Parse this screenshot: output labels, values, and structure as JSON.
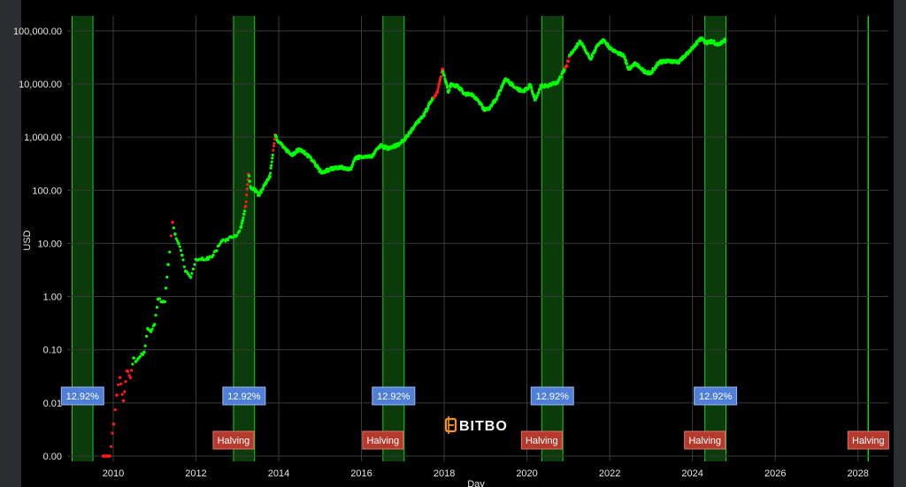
{
  "chart_data": {
    "type": "scatter",
    "xlabel": "Day",
    "ylabel": "USD",
    "yscale": "log",
    "xlim": [
      "2008-11-21",
      "2028-09-25"
    ],
    "ylim_log10": [
      -3.1,
      5.28
    ],
    "x_ticks": [
      "2010",
      "2012",
      "2014",
      "2016",
      "2018",
      "2020",
      "2022",
      "2024",
      "2026",
      "2028"
    ],
    "y_ticks": [
      {
        "value": 0.001,
        "label": "0.00"
      },
      {
        "value": 0.01,
        "label": "0.01"
      },
      {
        "value": 0.1,
        "label": "0.10"
      },
      {
        "value": 1,
        "label": "1.00"
      },
      {
        "value": 10,
        "label": "10.00"
      },
      {
        "value": 100,
        "label": "100.00"
      },
      {
        "value": 1000,
        "label": "1,000.00"
      },
      {
        "value": 10000,
        "label": "10,000.00"
      },
      {
        "value": 100000,
        "label": "100,000.00"
      }
    ],
    "grid": true,
    "colors": {
      "up": "#00ff00",
      "down": "#ff1a1a",
      "band_fill": "#0b3a0b",
      "band_line": "#1fd21f",
      "grid": "#3a3a3a"
    },
    "bands": [
      {
        "start": "2009-01-03",
        "end": "2009-07-06",
        "label": "12.92%"
      },
      {
        "start": "2012-11-28",
        "end": "2013-06-02",
        "label": "12.92%"
      },
      {
        "start": "2016-07-09",
        "end": "2017-01-12",
        "label": "12.92%"
      },
      {
        "start": "2020-05-11",
        "end": "2020-11-13",
        "label": "12.92%"
      },
      {
        "start": "2024-04-20",
        "end": "2024-10-23",
        "label": "12.92%"
      }
    ],
    "halvings": [
      {
        "date": "2012-11-28",
        "label": "Halving"
      },
      {
        "date": "2016-07-09",
        "label": "Halving"
      },
      {
        "date": "2020-05-11",
        "label": "Halving"
      },
      {
        "date": "2024-04-20",
        "label": "Halving"
      },
      {
        "date": "2028-04-01",
        "label": "Halving"
      }
    ],
    "series": [
      {
        "color_rule": "green when price rose in the following period, red when it fell",
        "points": [
          [
            "2009-10-05",
            0.001
          ],
          [
            "2009-10-20",
            0.001
          ],
          [
            "2009-11-10",
            0.001
          ],
          [
            "2009-12-01",
            0.001
          ],
          [
            "2010-01-05",
            0.004
          ],
          [
            "2010-02-01",
            0.014
          ],
          [
            "2010-03-01",
            0.03
          ],
          [
            "2010-04-01",
            0.011
          ],
          [
            "2010-05-01",
            0.04
          ],
          [
            "2010-06-01",
            0.03
          ],
          [
            "2010-07-01",
            0.07
          ],
          [
            "2010-07-20",
            0.06
          ],
          [
            "2010-08-15",
            0.07
          ],
          [
            "2010-10-01",
            0.09
          ],
          [
            "2010-11-01",
            0.25
          ],
          [
            "2010-12-01",
            0.22
          ],
          [
            "2011-01-01",
            0.3
          ],
          [
            "2011-02-01",
            0.9
          ],
          [
            "2011-03-01",
            0.8
          ],
          [
            "2011-04-01",
            0.8
          ],
          [
            "2011-05-01",
            4
          ],
          [
            "2011-06-08",
            25
          ],
          [
            "2011-07-01",
            15
          ],
          [
            "2011-08-01",
            10
          ],
          [
            "2011-09-01",
            6
          ],
          [
            "2011-10-01",
            3
          ],
          [
            "2011-11-15",
            2.3
          ],
          [
            "2012-01-01",
            5
          ],
          [
            "2012-02-15",
            5
          ],
          [
            "2012-04-01",
            5
          ],
          [
            "2012-06-01",
            6
          ],
          [
            "2012-08-15",
            11
          ],
          [
            "2012-10-01",
            12
          ],
          [
            "2012-12-15",
            13.5
          ],
          [
            "2013-02-01",
            20
          ],
          [
            "2013-03-15",
            50
          ],
          [
            "2013-04-09",
            200
          ],
          [
            "2013-05-01",
            110
          ],
          [
            "2013-06-15",
            100
          ],
          [
            "2013-07-10",
            80
          ],
          [
            "2013-09-01",
            130
          ],
          [
            "2013-10-15",
            180
          ],
          [
            "2013-11-30",
            1100
          ],
          [
            "2014-01-01",
            800
          ],
          [
            "2014-03-01",
            600
          ],
          [
            "2014-05-01",
            450
          ],
          [
            "2014-07-01",
            600
          ],
          [
            "2014-09-01",
            480
          ],
          [
            "2014-11-01",
            350
          ],
          [
            "2015-01-15",
            210
          ],
          [
            "2015-04-01",
            250
          ],
          [
            "2015-07-01",
            270
          ],
          [
            "2015-10-01",
            250
          ],
          [
            "2015-11-05",
            400
          ],
          [
            "2016-01-01",
            430
          ],
          [
            "2016-04-01",
            420
          ],
          [
            "2016-06-15",
            700
          ],
          [
            "2016-09-01",
            600
          ],
          [
            "2016-12-01",
            750
          ],
          [
            "2017-01-15",
            900
          ],
          [
            "2017-03-01",
            1200
          ],
          [
            "2017-05-01",
            1800
          ],
          [
            "2017-07-01",
            2500
          ],
          [
            "2017-09-01",
            4500
          ],
          [
            "2017-11-01",
            7000
          ],
          [
            "2017-12-17",
            19000
          ],
          [
            "2018-01-15",
            11000
          ],
          [
            "2018-02-06",
            7000
          ],
          [
            "2018-03-01",
            10000
          ],
          [
            "2018-05-01",
            9000
          ],
          [
            "2018-07-01",
            6500
          ],
          [
            "2018-09-01",
            6500
          ],
          [
            "2018-11-20",
            4200
          ],
          [
            "2018-12-15",
            3300
          ],
          [
            "2019-02-01",
            3500
          ],
          [
            "2019-04-01",
            5000
          ],
          [
            "2019-06-26",
            12500
          ],
          [
            "2019-08-01",
            10500
          ],
          [
            "2019-10-01",
            8300
          ],
          [
            "2019-12-01",
            7200
          ],
          [
            "2020-02-01",
            9500
          ],
          [
            "2020-03-13",
            5000
          ],
          [
            "2020-05-01",
            9000
          ],
          [
            "2020-07-15",
            9300
          ],
          [
            "2020-10-01",
            11000
          ],
          [
            "2020-12-15",
            22000
          ],
          [
            "2021-01-15",
            35000
          ],
          [
            "2021-04-14",
            63000
          ],
          [
            "2021-06-15",
            38000
          ],
          [
            "2021-07-20",
            30000
          ],
          [
            "2021-09-01",
            48000
          ],
          [
            "2021-11-10",
            67000
          ],
          [
            "2022-01-01",
            47000
          ],
          [
            "2022-03-01",
            40000
          ],
          [
            "2022-05-01",
            35000
          ],
          [
            "2022-06-18",
            19000
          ],
          [
            "2022-08-15",
            24000
          ],
          [
            "2022-11-20",
            16000
          ],
          [
            "2023-01-01",
            16500
          ],
          [
            "2023-03-15",
            26000
          ],
          [
            "2023-06-01",
            27000
          ],
          [
            "2023-09-01",
            26000
          ],
          [
            "2023-12-01",
            40000
          ],
          [
            "2024-03-14",
            72000
          ],
          [
            "2024-05-01",
            60000
          ],
          [
            "2024-07-01",
            63000
          ],
          [
            "2024-08-05",
            54000
          ],
          [
            "2024-10-15",
            67000
          ]
        ],
        "down_ranges": [
          [
            "2009-10-01",
            "2010-06-15"
          ],
          [
            "2011-05-15",
            "2011-06-10"
          ],
          [
            "2013-03-10",
            "2013-04-10"
          ],
          [
            "2013-11-10",
            "2013-11-30"
          ],
          [
            "2017-10-01",
            "2017-12-18"
          ],
          [
            "2020-12-01",
            "2021-01-10"
          ]
        ]
      }
    ]
  },
  "branding": {
    "logo_text": "BITBO",
    "logo_color": "#f7931a"
  }
}
